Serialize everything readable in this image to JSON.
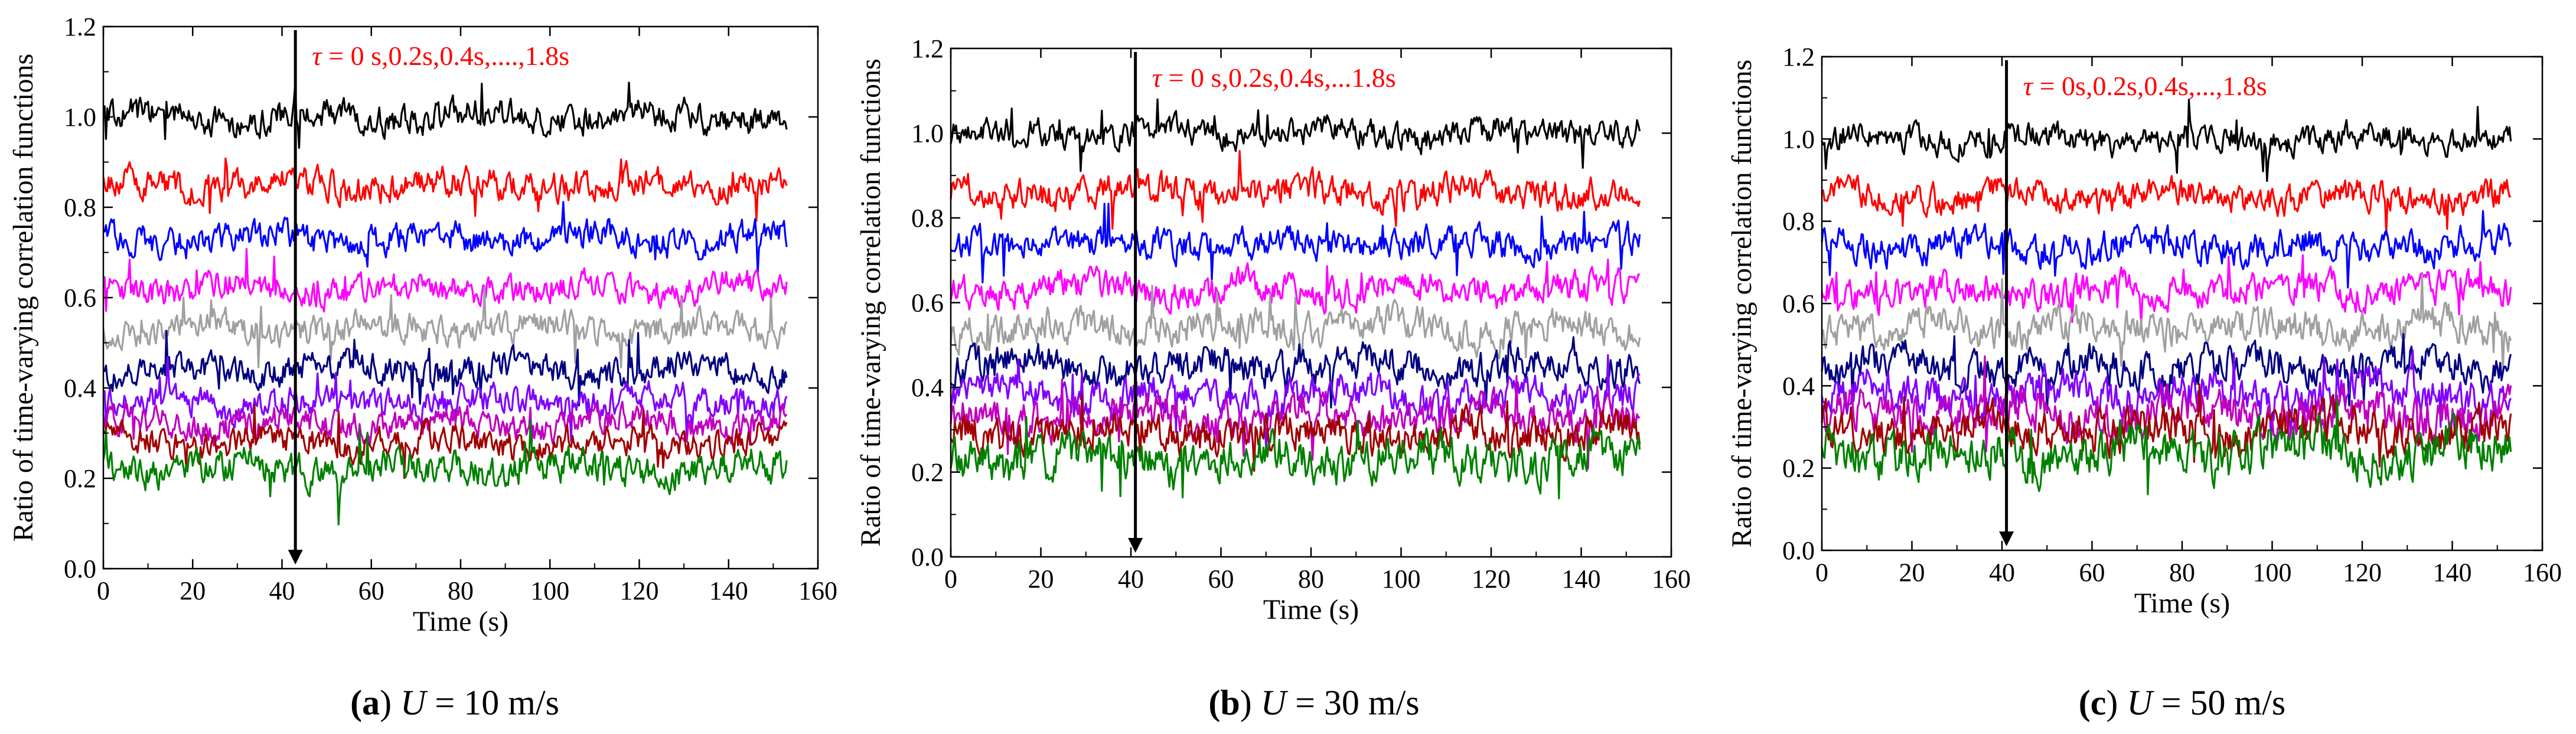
{
  "chart_data": [
    {
      "id": "a",
      "type": "line",
      "caption": {
        "letter": "(a)",
        "variable": "U",
        "rest": " = 10 m/s"
      },
      "xlabel": "Time (s)",
      "ylabel": "Ratio of time-varying correlation functions",
      "xlim": [
        0,
        160
      ],
      "ylim": [
        0,
        1.2
      ],
      "xticks": [
        0,
        20,
        40,
        60,
        80,
        100,
        120,
        140,
        160
      ],
      "yticks": [
        0.0,
        0.2,
        0.4,
        0.6,
        0.8,
        1.0,
        1.2
      ],
      "annotation": {
        "symbol": "τ",
        "text": "= 0 s,0.2s,0.4s,....,1.8s",
        "arrow_x": 43
      },
      "data_x_max": 153,
      "series": [
        {
          "name": "τ = 0 s",
          "color": "#000000",
          "mean": 1.0,
          "amp": 0.045
        },
        {
          "name": "τ = 0.2 s",
          "color": "#ff0000",
          "mean": 0.85,
          "amp": 0.045
        },
        {
          "name": "τ = 0.4 s",
          "color": "#0000ff",
          "mean": 0.73,
          "amp": 0.045
        },
        {
          "name": "τ = 0.6 s",
          "color": "#ff00ff",
          "mean": 0.62,
          "amp": 0.045
        },
        {
          "name": "τ = 0.8 s",
          "color": "#a0a0a0",
          "mean": 0.53,
          "amp": 0.045
        },
        {
          "name": "τ = 1.0 s",
          "color": "#000080",
          "mean": 0.44,
          "amp": 0.045
        },
        {
          "name": "τ = 1.2 s",
          "color": "#8000ff",
          "mean": 0.37,
          "amp": 0.045
        },
        {
          "name": "τ = 1.4 s",
          "color": "#c000c0",
          "mean": 0.32,
          "amp": 0.045
        },
        {
          "name": "τ = 1.6 s",
          "color": "#a00000",
          "mean": 0.28,
          "amp": 0.045
        },
        {
          "name": "τ = 1.8 s",
          "color": "#008000",
          "mean": 0.22,
          "amp": 0.05
        }
      ]
    },
    {
      "id": "b",
      "type": "line",
      "caption": {
        "letter": "(b)",
        "variable": "U",
        "rest": " = 30 m/s"
      },
      "xlabel": "Time (s)",
      "ylabel": "Ratio of time-varying correlation functions",
      "xlim": [
        0,
        160
      ],
      "ylim": [
        0,
        1.2
      ],
      "xticks": [
        0,
        20,
        40,
        60,
        80,
        100,
        120,
        140,
        160
      ],
      "yticks": [
        0.0,
        0.2,
        0.4,
        0.6,
        0.8,
        1.0,
        1.2
      ],
      "annotation": {
        "symbol": "τ",
        "text": "= 0 s,0.2s,0.4s,...1.8s",
        "arrow_x": 41
      },
      "data_x_max": 153,
      "series": [
        {
          "name": "τ = 0 s",
          "color": "#000000",
          "mean": 1.0,
          "amp": 0.045
        },
        {
          "name": "τ = 0.2 s",
          "color": "#ff0000",
          "mean": 0.86,
          "amp": 0.05
        },
        {
          "name": "τ = 0.4 s",
          "color": "#0000ff",
          "mean": 0.74,
          "amp": 0.05
        },
        {
          "name": "τ = 0.6 s",
          "color": "#ff00ff",
          "mean": 0.63,
          "amp": 0.05
        },
        {
          "name": "τ = 0.8 s",
          "color": "#a0a0a0",
          "mean": 0.54,
          "amp": 0.055
        },
        {
          "name": "τ = 1.0 s",
          "color": "#000080",
          "mean": 0.45,
          "amp": 0.055
        },
        {
          "name": "τ = 1.2 s",
          "color": "#8000ff",
          "mean": 0.38,
          "amp": 0.055
        },
        {
          "name": "τ = 1.4 s",
          "color": "#c000c0",
          "mean": 0.33,
          "amp": 0.06
        },
        {
          "name": "τ = 1.6 s",
          "color": "#a00000",
          "mean": 0.29,
          "amp": 0.06
        },
        {
          "name": "τ = 1.8 s",
          "color": "#008000",
          "mean": 0.23,
          "amp": 0.07
        }
      ]
    },
    {
      "id": "c",
      "type": "line",
      "caption": {
        "letter": "(c)",
        "variable": "U",
        "rest": " = 50 m/s"
      },
      "xlabel": "Time (s)",
      "ylabel": "Ratio of time-varying correlation functions",
      "xlim": [
        0,
        160
      ],
      "ylim": [
        0,
        1.2
      ],
      "xticks": [
        0,
        20,
        40,
        60,
        80,
        100,
        120,
        140,
        160
      ],
      "yticks": [
        0.0,
        0.2,
        0.4,
        0.6,
        0.8,
        1.0,
        1.2
      ],
      "annotation": {
        "symbol": "τ",
        "text": "= 0s,0.2s,0.4s,...,1.8s",
        "arrow_x": 41
      },
      "data_x_max": 153,
      "series": [
        {
          "name": "τ = 0 s",
          "color": "#000000",
          "mean": 1.0,
          "amp": 0.045
        },
        {
          "name": "τ = 0.2 s",
          "color": "#ff0000",
          "mean": 0.86,
          "amp": 0.05
        },
        {
          "name": "τ = 0.4 s",
          "color": "#0000ff",
          "mean": 0.74,
          "amp": 0.055
        },
        {
          "name": "τ = 0.6 s",
          "color": "#ff00ff",
          "mean": 0.63,
          "amp": 0.055
        },
        {
          "name": "τ = 0.8 s",
          "color": "#a0a0a0",
          "mean": 0.54,
          "amp": 0.06
        },
        {
          "name": "τ = 1.0 s",
          "color": "#000080",
          "mean": 0.45,
          "amp": 0.06
        },
        {
          "name": "τ = 1.2 s",
          "color": "#8000ff",
          "mean": 0.38,
          "amp": 0.065
        },
        {
          "name": "τ = 1.4 s",
          "color": "#c000c0",
          "mean": 0.33,
          "amp": 0.07
        },
        {
          "name": "τ = 1.6 s",
          "color": "#a00000",
          "mean": 0.29,
          "amp": 0.07
        },
        {
          "name": "τ = 1.8 s",
          "color": "#008000",
          "mean": 0.24,
          "amp": 0.08
        }
      ]
    }
  ]
}
